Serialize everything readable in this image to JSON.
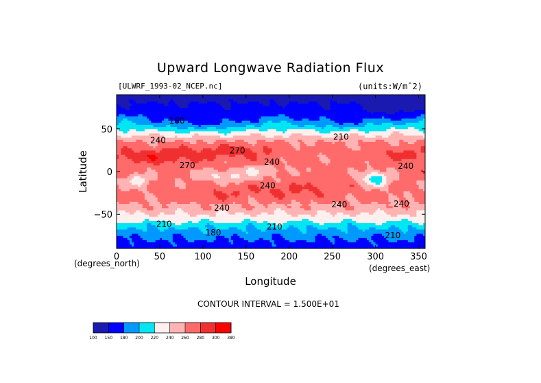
{
  "chart_data": {
    "type": "heatmap",
    "title": "Upward Longwave Radiation Flux",
    "source_label": "[ULWRF_1993-02_NCEP.nc]",
    "units_label": "(units:W/m¯2)",
    "xlabel": "Longitude",
    "ylabel": "Latitude",
    "x_units_note": "(degrees_east)",
    "y_units_note": "(degrees_north)",
    "xlim": [
      0,
      357.5
    ],
    "ylim": [
      -90,
      90
    ],
    "x_ticks": [
      0,
      50,
      100,
      150,
      200,
      250,
      300,
      350
    ],
    "y_ticks": [
      -50,
      0,
      50
    ],
    "contour_interval_text": "CONTOUR INTERVAL = 1.500E+01",
    "colorbar_levels": [
      100,
      150,
      180,
      200,
      220,
      240,
      260,
      280,
      300,
      380
    ],
    "colorbar_labels": [
      "100",
      "150",
      "180",
      "200",
      "220",
      "240",
      "260",
      "280",
      "300",
      "380"
    ],
    "colorbar_colors": [
      "#1a1ab0",
      "#0000ff",
      "#0099ff",
      "#00e6f2",
      "#fff0f0",
      "#ffb3b3",
      "#ff6b6b",
      "#f03030",
      "#ff0000"
    ],
    "contour_labels": [
      {
        "text": "180",
        "lon": 70,
        "lat": 59
      },
      {
        "text": "240",
        "lon": 48,
        "lat": 36
      },
      {
        "text": "210",
        "lon": 260,
        "lat": 40
      },
      {
        "text": "270",
        "lon": 140,
        "lat": 24
      },
      {
        "text": "240",
        "lon": 180,
        "lat": 11
      },
      {
        "text": "270",
        "lon": 82,
        "lat": 7
      },
      {
        "text": "240",
        "lon": 175,
        "lat": -17
      },
      {
        "text": "240",
        "lon": 122,
        "lat": -43
      },
      {
        "text": "240",
        "lon": 258,
        "lat": -39
      },
      {
        "text": "210",
        "lon": 55,
        "lat": -62
      },
      {
        "text": "210",
        "lon": 183,
        "lat": -65
      },
      {
        "text": "180",
        "lon": 112,
        "lat": -72
      },
      {
        "text": "210",
        "lon": 320,
        "lat": -75
      },
      {
        "text": "240",
        "lon": 330,
        "lat": -38
      },
      {
        "text": "240",
        "lon": 335,
        "lat": 6
      }
    ]
  }
}
